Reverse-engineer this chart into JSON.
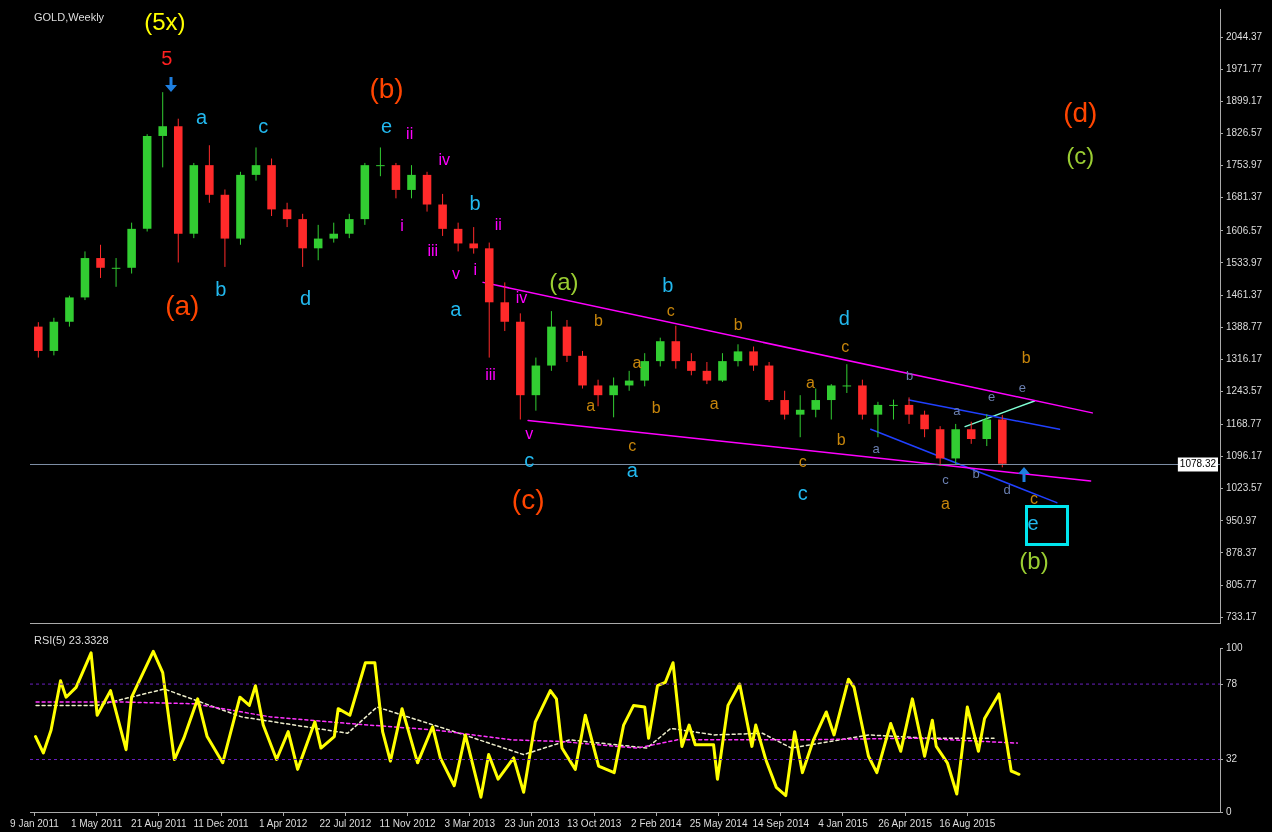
{
  "chart_data": [
    {
      "type": "candlestick",
      "title": "GOLD,Weekly",
      "x": [
        "2011-01-16",
        "2011-02-13",
        "2011-03-13",
        "2011-04-10",
        "2011-05-08",
        "2011-06-05",
        "2011-07-03",
        "2011-07-31",
        "2011-08-28",
        "2011-09-25",
        "2011-10-23",
        "2011-11-20",
        "2011-12-18",
        "2012-01-15",
        "2012-02-12",
        "2012-03-11",
        "2012-04-08",
        "2012-05-06",
        "2012-06-03",
        "2012-07-01",
        "2012-07-29",
        "2012-08-26",
        "2012-09-23",
        "2012-10-21",
        "2012-11-18",
        "2012-12-16",
        "2013-01-13",
        "2013-02-10",
        "2013-03-10",
        "2013-04-07",
        "2013-05-05",
        "2013-06-02",
        "2013-06-30",
        "2013-07-28",
        "2013-08-25",
        "2013-09-22",
        "2013-10-20",
        "2013-11-17",
        "2013-12-15",
        "2014-01-12",
        "2014-02-09",
        "2014-03-09",
        "2014-04-06",
        "2014-05-04",
        "2014-06-01",
        "2014-06-29",
        "2014-07-27",
        "2014-08-24",
        "2014-09-21",
        "2014-10-19",
        "2014-11-16",
        "2014-12-14",
        "2015-01-11",
        "2015-02-08",
        "2015-03-08",
        "2015-04-05",
        "2015-05-03",
        "2015-05-31",
        "2015-06-28",
        "2015-07-26",
        "2015-08-23",
        "2015-09-20",
        "2015-10-18"
      ],
      "ohlc": [
        [
          1390,
          1400,
          1320,
          1335
        ],
        [
          1335,
          1410,
          1325,
          1401
        ],
        [
          1401,
          1460,
          1390,
          1456
        ],
        [
          1456,
          1560,
          1450,
          1545
        ],
        [
          1545,
          1575,
          1500,
          1523
        ],
        [
          1523,
          1545,
          1480,
          1523
        ],
        [
          1523,
          1625,
          1510,
          1611
        ],
        [
          1611,
          1825,
          1605,
          1821
        ],
        [
          1821,
          1920,
          1750,
          1843
        ],
        [
          1843,
          1860,
          1535,
          1600
        ],
        [
          1600,
          1760,
          1590,
          1755
        ],
        [
          1755,
          1800,
          1670,
          1688
        ],
        [
          1688,
          1700,
          1525,
          1589
        ],
        [
          1589,
          1740,
          1575,
          1733
        ],
        [
          1733,
          1795,
          1720,
          1755
        ],
        [
          1755,
          1770,
          1640,
          1655
        ],
        [
          1655,
          1670,
          1615,
          1633
        ],
        [
          1633,
          1645,
          1525,
          1567
        ],
        [
          1567,
          1620,
          1540,
          1589
        ],
        [
          1589,
          1625,
          1580,
          1600
        ],
        [
          1600,
          1645,
          1590,
          1633
        ],
        [
          1633,
          1760,
          1620,
          1755
        ],
        [
          1755,
          1795,
          1730,
          1755
        ],
        [
          1755,
          1760,
          1680,
          1699
        ],
        [
          1699,
          1755,
          1680,
          1733
        ],
        [
          1733,
          1740,
          1650,
          1666
        ],
        [
          1666,
          1690,
          1595,
          1611
        ],
        [
          1611,
          1625,
          1560,
          1578
        ],
        [
          1578,
          1615,
          1555,
          1567
        ],
        [
          1567,
          1580,
          1320,
          1445
        ],
        [
          1445,
          1490,
          1380,
          1401
        ],
        [
          1401,
          1420,
          1180,
          1235
        ],
        [
          1235,
          1320,
          1200,
          1302
        ],
        [
          1302,
          1425,
          1290,
          1390
        ],
        [
          1390,
          1405,
          1310,
          1324
        ],
        [
          1324,
          1335,
          1250,
          1257
        ],
        [
          1257,
          1270,
          1210,
          1235
        ],
        [
          1235,
          1275,
          1185,
          1257
        ],
        [
          1257,
          1290,
          1245,
          1268
        ],
        [
          1268,
          1330,
          1255,
          1312
        ],
        [
          1312,
          1365,
          1300,
          1357
        ],
        [
          1357,
          1392,
          1295,
          1312
        ],
        [
          1312,
          1330,
          1280,
          1290
        ],
        [
          1290,
          1310,
          1260,
          1268
        ],
        [
          1268,
          1330,
          1265,
          1312
        ],
        [
          1312,
          1350,
          1300,
          1334
        ],
        [
          1334,
          1345,
          1290,
          1302
        ],
        [
          1302,
          1310,
          1220,
          1224
        ],
        [
          1224,
          1245,
          1180,
          1191
        ],
        [
          1191,
          1235,
          1140,
          1202
        ],
        [
          1202,
          1250,
          1185,
          1224
        ],
        [
          1224,
          1260,
          1180,
          1257
        ],
        [
          1257,
          1305,
          1240,
          1257
        ],
        [
          1257,
          1270,
          1180,
          1191
        ],
        [
          1191,
          1220,
          1140,
          1213
        ],
        [
          1213,
          1225,
          1180,
          1213
        ],
        [
          1213,
          1230,
          1170,
          1191
        ],
        [
          1191,
          1200,
          1140,
          1158
        ],
        [
          1158,
          1165,
          1075,
          1092
        ],
        [
          1092,
          1170,
          1080,
          1158
        ],
        [
          1158,
          1175,
          1125,
          1136
        ],
        [
          1136,
          1192,
          1120,
          1180
        ],
        [
          1180,
          1190,
          1072,
          1080
        ]
      ],
      "series": [
        {
          "type": "line",
          "x": [
            "2013-03-27",
            "2016-03-28"
          ],
          "values": [
            1490,
            1195
          ],
          "color": "#ff00ff"
        },
        {
          "type": "line",
          "x": [
            "2013-06-16",
            "2016-03-25"
          ],
          "values": [
            1178,
            1041
          ],
          "color": "#ff00ff"
        },
        {
          "type": "line",
          "x": [
            "2015-05-03",
            "2016-01-29"
          ],
          "values": [
            1224,
            1158
          ],
          "color": "#2040ff"
        },
        {
          "type": "line",
          "x": [
            "2015-02-23",
            "2016-01-24"
          ],
          "values": [
            1158,
            992
          ],
          "color": "#2040ff"
        },
        {
          "type": "line",
          "x": [
            "2015-08-12",
            "2015-12-15"
          ],
          "values": [
            1164,
            1222
          ],
          "color": "#7fffd4"
        }
      ],
      "xlim": [
        "2011-01-01",
        "2016-11-13"
      ],
      "ylim": [
        720,
        2108
      ],
      "yticks": [
        733.17,
        805.77,
        878.37,
        950.97,
        1023.57,
        1096.17,
        1168.77,
        1243.57,
        1316.17,
        1388.77,
        1461.37,
        1533.97,
        1606.57,
        1681.37,
        1753.97,
        1826.57,
        1899.17,
        1971.77,
        2044.37
      ],
      "tick_labels": "y",
      "ref_lines": [
        {
          "axis": "y",
          "value": 1078.32,
          "label": "1078.32",
          "color": "#7f8fa6"
        }
      ],
      "annotations": [
        "(5x)",
        "5",
        "a",
        "c",
        "(b)",
        "e",
        "ii",
        "iv",
        "b",
        "ii",
        "i",
        "iii",
        "v",
        "i",
        "a",
        "(a)",
        "b",
        "d",
        "iii",
        "iv",
        "(a)",
        "b",
        "c",
        "b",
        "b",
        "d",
        "c",
        "a",
        "a",
        "b",
        "a",
        "a",
        "b",
        "v",
        "c",
        "(c)",
        "c",
        "a",
        "c",
        "c",
        "b",
        "a",
        "a",
        "e",
        "e",
        "b",
        "c",
        "b",
        "d",
        "c",
        "a",
        "e",
        "(b)",
        "(d)",
        "(c)"
      ]
    },
    {
      "type": "line",
      "title": "RSI(5) 23.3328",
      "series": [
        {
          "x": [
            "2011-01-11",
            "2011-01-25",
            "2011-02-08",
            "2011-02-25",
            "2011-03-07",
            "2011-03-25",
            "2011-04-21",
            "2011-05-02",
            "2011-05-26",
            "2011-06-23",
            "2011-07-03",
            "2011-08-11",
            "2011-08-28",
            "2011-09-18",
            "2011-10-05",
            "2011-10-30",
            "2011-11-16",
            "2011-12-14",
            "2012-01-14",
            "2012-01-31",
            "2012-02-11",
            "2012-02-25",
            "2012-03-20",
            "2012-04-10",
            "2012-04-27",
            "2012-05-28",
            "2012-06-08",
            "2012-07-02",
            "2012-07-09",
            "2012-07-30",
            "2012-08-27",
            "2012-09-13",
            "2012-09-27",
            "2012-10-11",
            "2012-11-01",
            "2012-11-29",
            "2012-12-26",
            "2013-01-09",
            "2013-02-03",
            "2013-02-23",
            "2013-03-23",
            "2013-04-06",
            "2013-04-23",
            "2013-05-21",
            "2013-06-08",
            "2013-06-29",
            "2013-07-26",
            "2013-08-06",
            "2013-08-16",
            "2013-09-09",
            "2013-09-27",
            "2013-10-21",
            "2013-11-18",
            "2013-12-05",
            "2013-12-23",
            "2014-01-12",
            "2014-01-19",
            "2014-02-04",
            "2014-02-18",
            "2014-03-04",
            "2014-03-20",
            "2014-04-02",
            "2014-04-13",
            "2014-05-16",
            "2014-05-23",
            "2014-06-11",
            "2014-07-02",
            "2014-07-24",
            "2014-07-31",
            "2014-08-18",
            "2014-09-06",
            "2014-09-23",
            "2014-10-09",
            "2014-10-23",
            "2014-11-12",
            "2014-12-05",
            "2014-12-19",
            "2015-01-14",
            "2015-01-24",
            "2015-02-19",
            "2015-03-06",
            "2015-03-31",
            "2015-04-18",
            "2015-05-09",
            "2015-05-31",
            "2015-06-14",
            "2015-06-21",
            "2015-07-11",
            "2015-07-28",
            "2015-08-16",
            "2015-09-05",
            "2015-09-16",
            "2015-10-12",
            "2015-11-03",
            "2015-11-17"
          ],
          "values": [
            46,
            36,
            50,
            80,
            70,
            76,
            97,
            59,
            74,
            38,
            70,
            98,
            85,
            32,
            45,
            69,
            46,
            30,
            70,
            65,
            77,
            53,
            32,
            49,
            26,
            55,
            39,
            46,
            63,
            59,
            91,
            91,
            49,
            31,
            63,
            30,
            52,
            33,
            16,
            47,
            9,
            35,
            20,
            33,
            12,
            55,
            74,
            69,
            39,
            26,
            59,
            28,
            24,
            53,
            65,
            64,
            45,
            77,
            79,
            91,
            40,
            53,
            41,
            41,
            20,
            65,
            78,
            40,
            53,
            32,
            15,
            10,
            49,
            24,
            44,
            61,
            47,
            81,
            76,
            34,
            24,
            54,
            37,
            69,
            34,
            56,
            40,
            30,
            11,
            64,
            37,
            57,
            72,
            25,
            23
          ],
          "color": "#ffff00"
        },
        {
          "x": [
            "2011-01-12",
            "2011-06-23",
            "2011-10-22",
            "2012-03-09",
            "2012-07-26",
            "2012-12-30",
            "2013-05-18",
            "2013-08-13",
            "2013-12-30",
            "2014-03-12",
            "2014-10-16",
            "2015-05-21",
            "2015-11-14"
          ],
          "values": [
            67,
            67,
            66,
            58,
            54,
            50,
            44,
            43,
            39,
            44,
            44,
            45,
            42
          ],
          "color": "#ff33ff",
          "line_style": "dashed"
        },
        {
          "x": [
            "2011-01-12",
            "2011-05-02",
            "2011-08-31",
            "2012-01-17",
            "2012-07-26",
            "2012-09-17",
            "2013-02-03",
            "2013-06-08",
            "2013-08-30",
            "2014-01-16",
            "2014-02-28",
            "2014-05-17",
            "2014-08-12",
            "2014-10-03",
            "2015-02-19",
            "2015-06-04",
            "2015-10-03"
          ],
          "values": [
            65,
            65,
            75,
            58,
            48,
            64,
            49,
            35,
            44,
            39,
            51,
            47,
            48,
            39,
            47,
            45,
            45
          ],
          "color": "#eeeecc",
          "line_style": "dashed"
        }
      ],
      "xlim": [
        "2011-01-01",
        "2016-11-13"
      ],
      "ylim": [
        0,
        100
      ],
      "xticks": [
        {
          "value": "2011-01-09",
          "label": "9 Jan 2011"
        },
        {
          "value": "2011-05-01",
          "label": "1 May 2011"
        },
        {
          "value": "2011-08-21",
          "label": "21 Aug 2011"
        },
        {
          "value": "2011-12-11",
          "label": "11 Dec 2011"
        },
        {
          "value": "2012-04-01",
          "label": "1 Apr 2012"
        },
        {
          "value": "2012-07-22",
          "label": "22 Jul 2012"
        },
        {
          "value": "2012-11-11",
          "label": "11 Nov 2012"
        },
        {
          "value": "2013-03-03",
          "label": "3 Mar 2013"
        },
        {
          "value": "2013-06-23",
          "label": "23 Jun 2013"
        },
        {
          "value": "2013-10-13",
          "label": "13 Oct 2013"
        },
        {
          "value": "2014-02-02",
          "label": "2 Feb 2014"
        },
        {
          "value": "2014-05-25",
          "label": "25 May 2014"
        },
        {
          "value": "2014-09-14",
          "label": "14 Sep 2014"
        },
        {
          "value": "2015-01-04",
          "label": "4 Jan 2015"
        },
        {
          "value": "2015-04-26",
          "label": "26 Apr 2015"
        },
        {
          "value": "2015-08-16",
          "label": "16 Aug 2015"
        }
      ],
      "yticks": [
        0,
        32,
        78,
        100
      ],
      "marker": "none",
      "ref_lines": [
        {
          "axis": "y",
          "value": 78,
          "color": "#6a1fc0",
          "line_style": "dashed"
        },
        {
          "axis": "y",
          "value": 32,
          "color": "#6a1fc0",
          "line_style": "dashed"
        }
      ]
    }
  ]
}
